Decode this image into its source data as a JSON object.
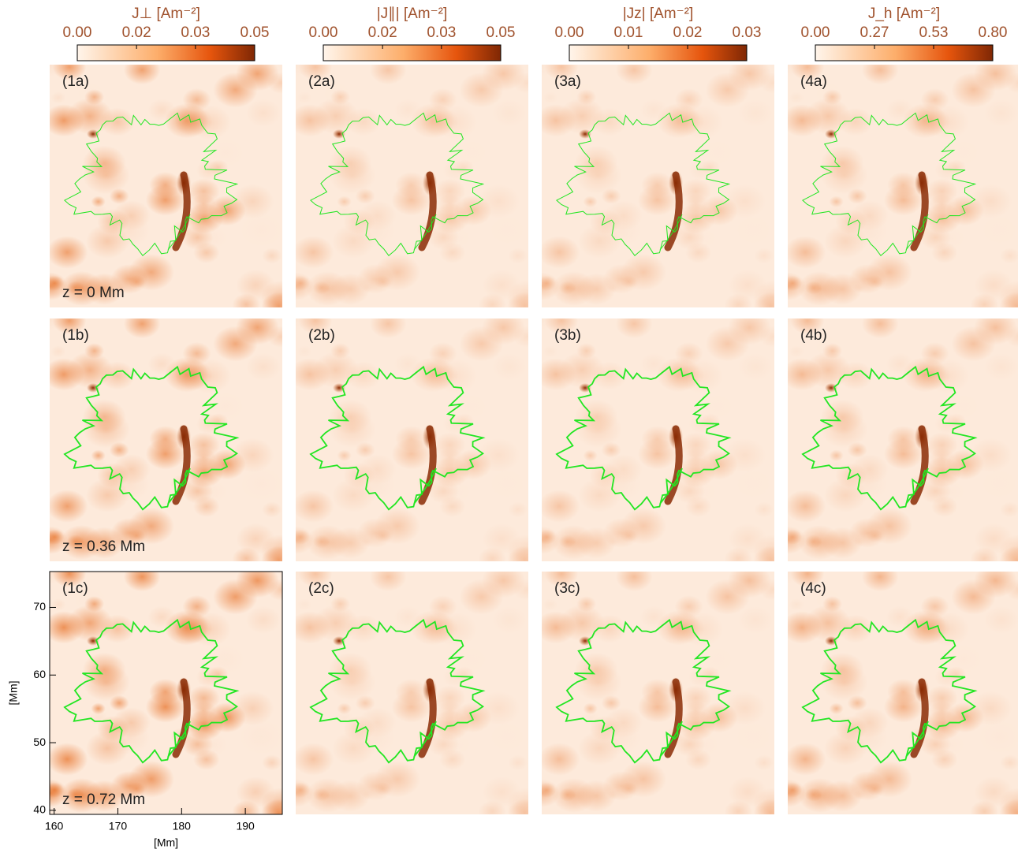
{
  "chart_data": {
    "type": "heatmap-grid",
    "colorbars": [
      {
        "title": "J⊥ [Am⁻²]",
        "lim": [
          0,
          0.05
        ],
        "ticks": [
          {
            "value": 0,
            "label": "0.00"
          },
          {
            "value": 0.0167,
            "label": "0.02"
          },
          {
            "value": 0.0333,
            "label": "0.03"
          },
          {
            "value": 0.05,
            "label": "0.05"
          }
        ]
      },
      {
        "title": "|J∥| [Am⁻²]",
        "lim": [
          0,
          0.05
        ],
        "ticks": [
          {
            "value": 0,
            "label": "0.00"
          },
          {
            "value": 0.0167,
            "label": "0.02"
          },
          {
            "value": 0.0333,
            "label": "0.03"
          },
          {
            "value": 0.05,
            "label": "0.05"
          }
        ]
      },
      {
        "title": "|Jz| [Am⁻²]",
        "lim": [
          0,
          0.03
        ],
        "ticks": [
          {
            "value": 0,
            "label": "0.00"
          },
          0.01,
          0.02,
          0.03
        ]
      },
      {
        "title": "J_h [Am⁻²]",
        "lim": [
          0,
          0.8
        ],
        "ticks": [
          {
            "value": 0,
            "label": "0.00"
          },
          {
            "value": 0.2667,
            "label": "0.27"
          },
          {
            "value": 0.5333,
            "label": "0.53"
          },
          {
            "value": 0.8,
            "label": "0.80"
          }
        ]
      }
    ],
    "panels": [
      [
        "(1a)",
        "(2a)",
        "(3a)",
        "(4a)"
      ],
      [
        "(1b)",
        "(2b)",
        "(3b)",
        "(4b)"
      ],
      [
        "(1c)",
        "(2c)",
        "(3c)",
        "(4c)"
      ]
    ],
    "heights": [
      "z = 0 Mm",
      "z = 0.36 Mm",
      "z = 0.72 Mm"
    ],
    "xlabel": "[Mm]",
    "ylabel": "[Mm]",
    "xlim": [
      159.3,
      195.8
    ],
    "xticks": [
      160,
      170,
      180,
      190
    ],
    "ylim": [
      39.4,
      75.3
    ],
    "yticks": [
      40,
      50,
      60,
      70
    ]
  }
}
